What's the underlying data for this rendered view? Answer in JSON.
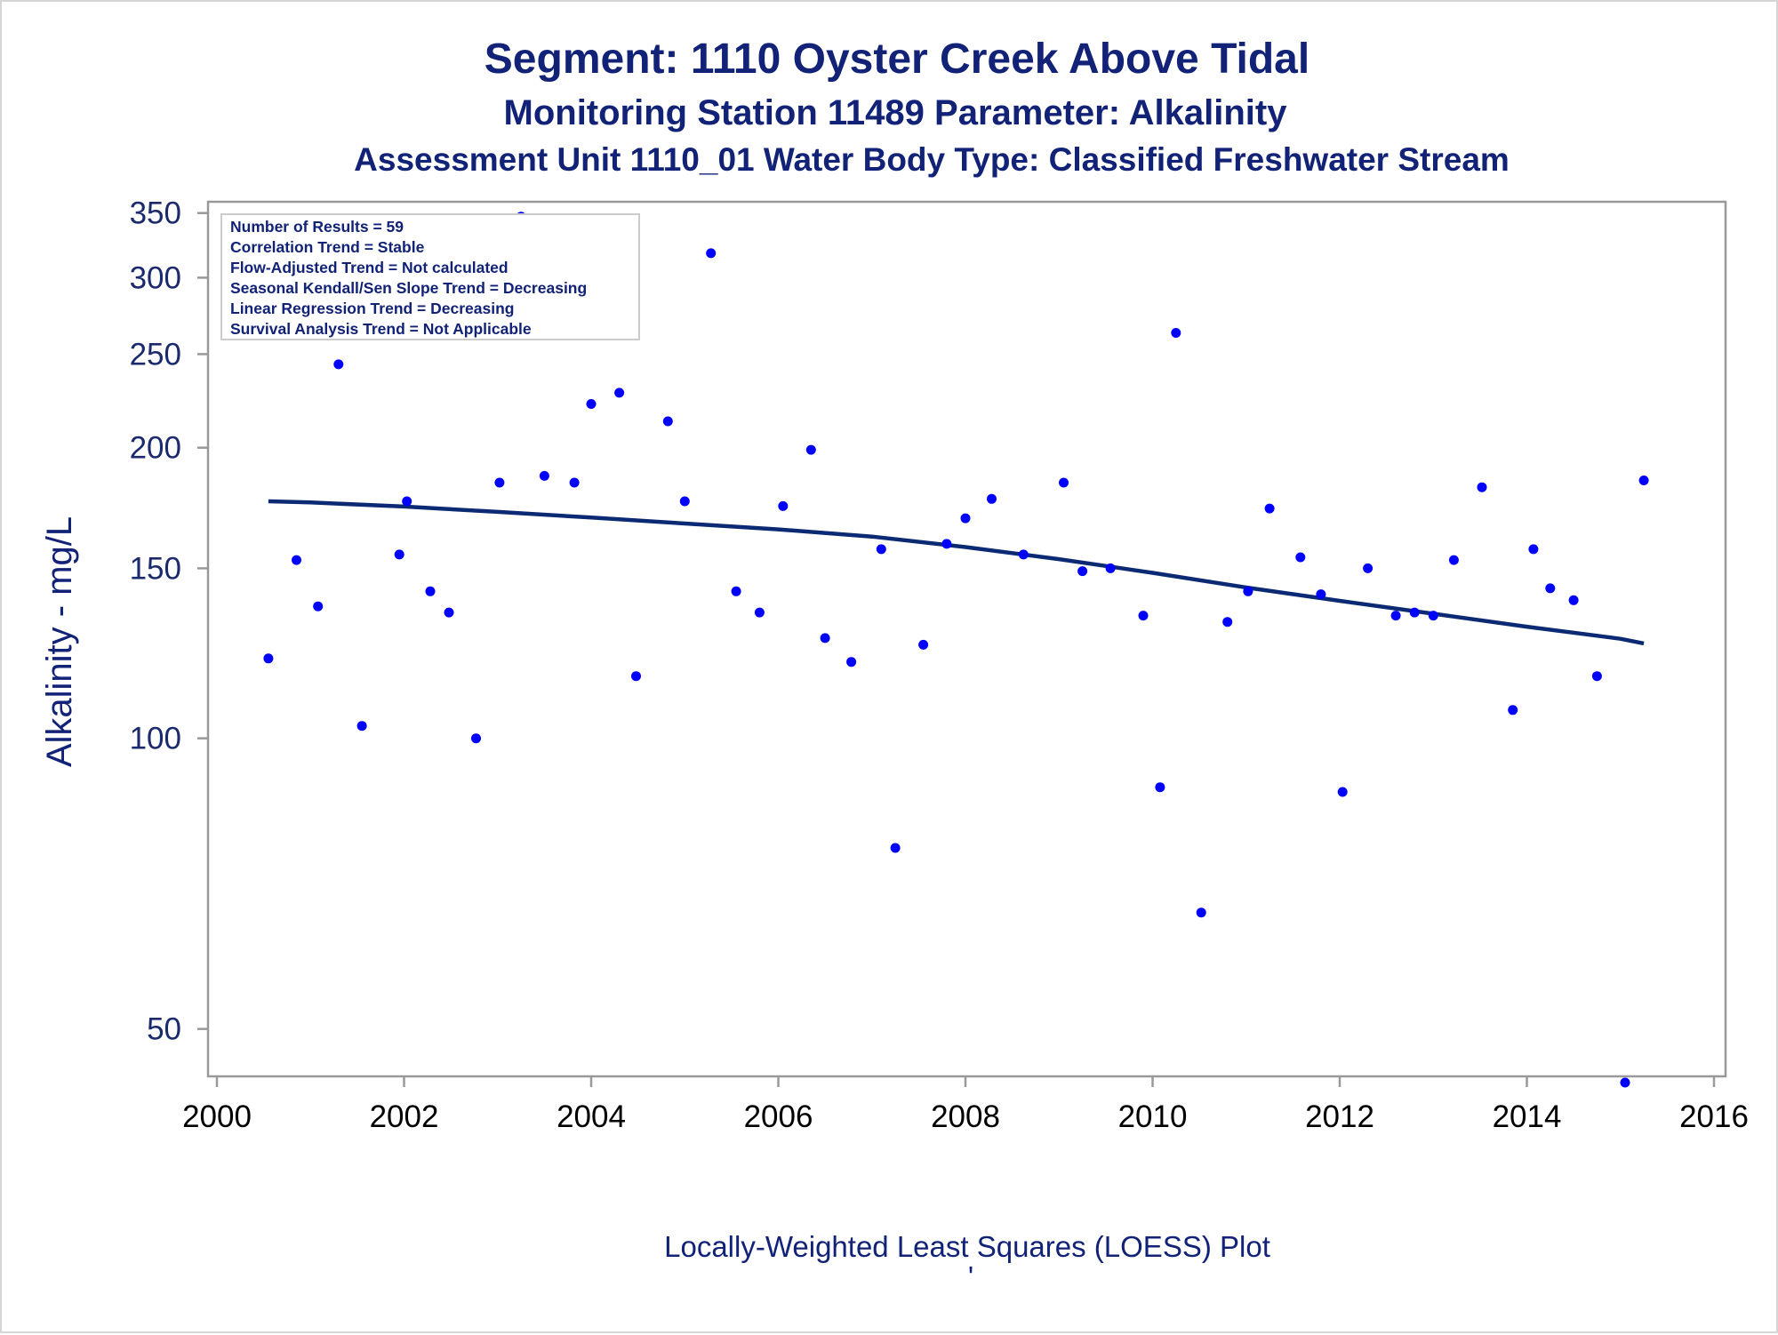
{
  "titles": {
    "line1": "Segment: 1110  Oyster Creek Above Tidal",
    "line2": "Monitoring Station 11489 Parameter: Alkalinity",
    "line3": "Assessment Unit 1110_01   Water Body Type: Classified Freshwater Stream"
  },
  "footnote": "Locally-Weighted Least Squares (LOESS) Plot",
  "footnote_mark": "'",
  "stats_box": [
    "Number of Results = 59",
    "Correlation Trend = Stable",
    "Flow-Adjusted Trend = Not calculated",
    "Seasonal Kendall/Sen Slope Trend = Decreasing",
    "Linear Regression Trend = Decreasing",
    "Survival Analysis Trend = Not Applicable"
  ],
  "colors": {
    "points": "#0000ff",
    "trend_line": "#0c2a74",
    "text": "#112277",
    "axis": "#999999"
  },
  "chart_data": {
    "type": "scatter",
    "title": "Segment: 1110  Oyster Creek Above Tidal",
    "xlabel": "",
    "ylabel": "Alkalinity - mg/L",
    "xlim": [
      2000,
      2016
    ],
    "ylim": [
      46,
      355
    ],
    "yscale": "log",
    "xticks": [
      2000,
      2002,
      2004,
      2006,
      2008,
      2010,
      2012,
      2014,
      2016
    ],
    "yticks": [
      50,
      100,
      150,
      200,
      250,
      300,
      350
    ],
    "grid": false,
    "series": [
      {
        "type": "scatter",
        "points": [
          [
            2000.55,
            121
          ],
          [
            2000.85,
            153
          ],
          [
            2001.08,
            137
          ],
          [
            2001.3,
            244
          ],
          [
            2001.55,
            103
          ],
          [
            2001.95,
            155
          ],
          [
            2002.03,
            176
          ],
          [
            2002.28,
            142
          ],
          [
            2002.48,
            135
          ],
          [
            2002.77,
            100
          ],
          [
            2003.02,
            184
          ],
          [
            2003.25,
            347
          ],
          [
            2003.5,
            187
          ],
          [
            2003.82,
            184
          ],
          [
            2004.0,
            222
          ],
          [
            2004.3,
            228
          ],
          [
            2004.48,
            116
          ],
          [
            2004.82,
            213
          ],
          [
            2005.0,
            176
          ],
          [
            2005.28,
            318
          ],
          [
            2005.55,
            142
          ],
          [
            2005.8,
            135
          ],
          [
            2006.05,
            174
          ],
          [
            2006.35,
            199
          ],
          [
            2006.5,
            127
          ],
          [
            2006.78,
            120
          ],
          [
            2007.1,
            157
          ],
          [
            2007.25,
            77
          ],
          [
            2007.55,
            125
          ],
          [
            2007.8,
            159
          ],
          [
            2008.0,
            169
          ],
          [
            2008.28,
            177
          ],
          [
            2008.62,
            155
          ],
          [
            2009.05,
            184
          ],
          [
            2009.25,
            149
          ],
          [
            2009.55,
            150
          ],
          [
            2009.9,
            134
          ],
          [
            2010.08,
            89
          ],
          [
            2010.25,
            263
          ],
          [
            2010.52,
            66
          ],
          [
            2010.8,
            132
          ],
          [
            2011.02,
            142
          ],
          [
            2011.25,
            173
          ],
          [
            2011.58,
            154
          ],
          [
            2011.8,
            141
          ],
          [
            2012.03,
            88
          ],
          [
            2012.3,
            150
          ],
          [
            2012.6,
            134
          ],
          [
            2012.8,
            135
          ],
          [
            2013.0,
            134
          ],
          [
            2013.22,
            153
          ],
          [
            2013.52,
            182
          ],
          [
            2013.85,
            107
          ],
          [
            2014.07,
            157
          ],
          [
            2014.25,
            143
          ],
          [
            2014.5,
            139
          ],
          [
            2014.75,
            116
          ],
          [
            2015.05,
            44
          ],
          [
            2015.25,
            185
          ]
        ]
      },
      {
        "type": "line",
        "points": [
          [
            2000.55,
            176
          ],
          [
            2001.0,
            175.5
          ],
          [
            2002.0,
            173.8
          ],
          [
            2003.0,
            171.6
          ],
          [
            2004.0,
            169.3
          ],
          [
            2005.0,
            166.9
          ],
          [
            2006.0,
            164.6
          ],
          [
            2007.0,
            161.8
          ],
          [
            2008.0,
            157.8
          ],
          [
            2009.0,
            153.3
          ],
          [
            2010.0,
            148.4
          ],
          [
            2011.0,
            143.3
          ],
          [
            2012.0,
            138.8
          ],
          [
            2013.0,
            134.6
          ],
          [
            2014.0,
            130.5
          ],
          [
            2015.0,
            126.8
          ],
          [
            2015.25,
            125.4
          ]
        ]
      }
    ]
  }
}
